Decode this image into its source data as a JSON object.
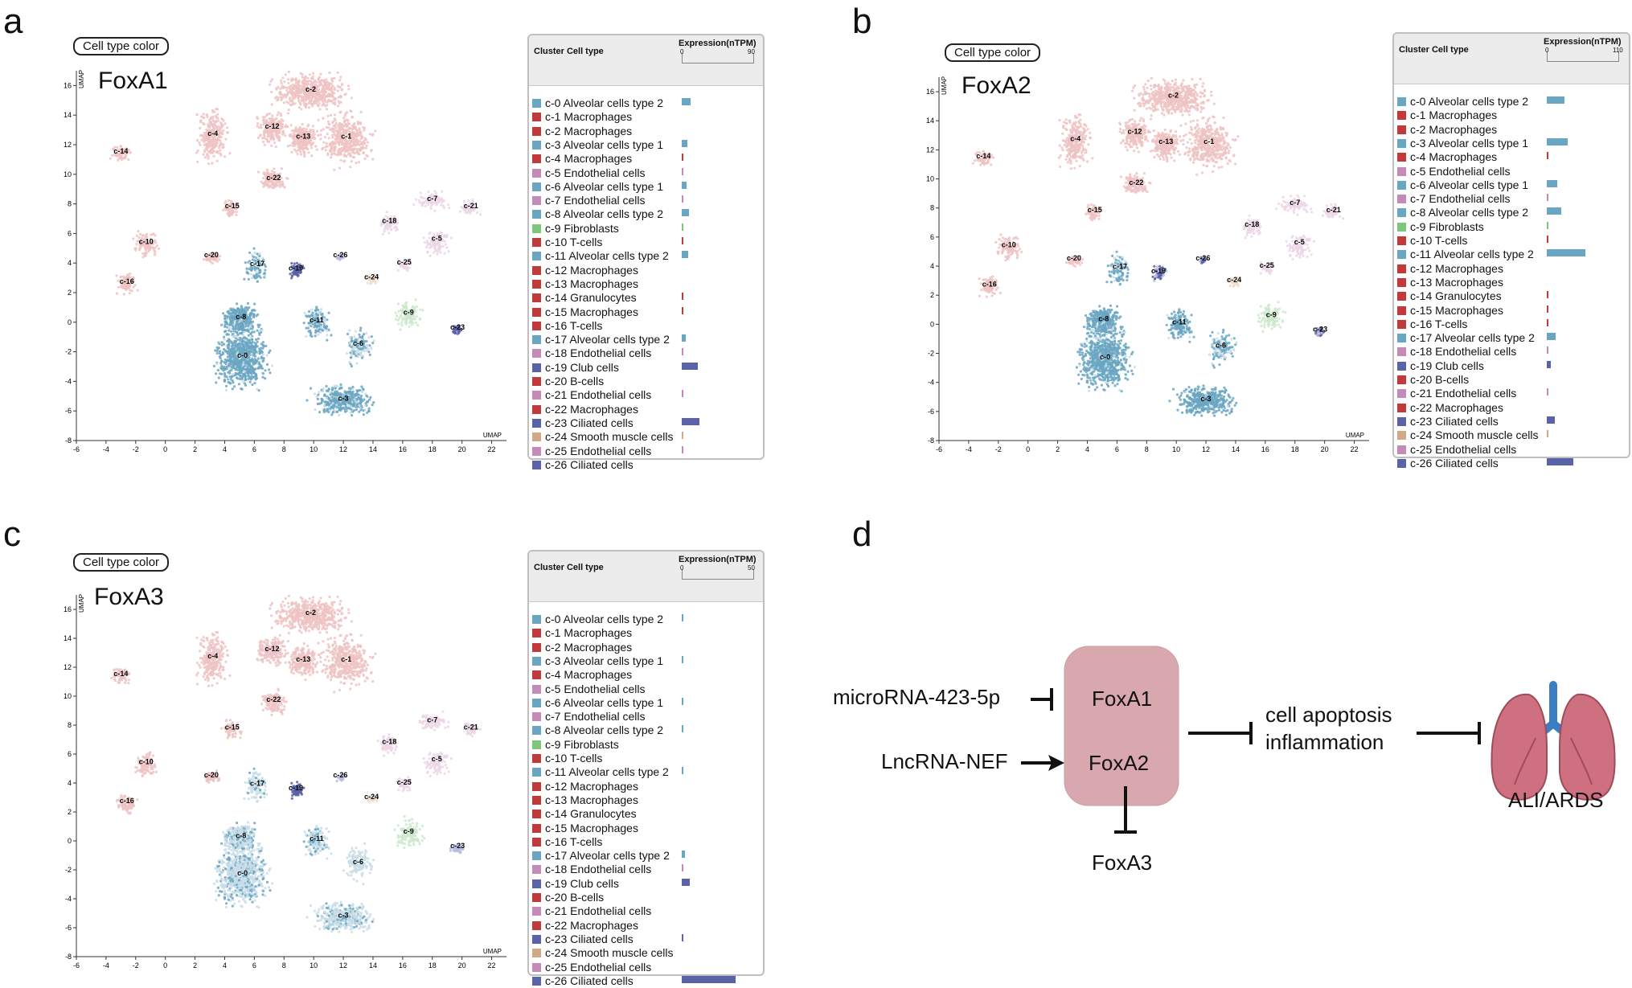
{
  "panel_labels": {
    "a": "a",
    "b": "b",
    "c": "c",
    "d": "d"
  },
  "cell_type_color_label": "Cell type color",
  "axis_label": "UMAP",
  "x_ticks": [
    "-6",
    "-4",
    "-2",
    "0",
    "2",
    "4",
    "6",
    "8",
    "10",
    "12",
    "14",
    "16",
    "18",
    "20",
    "22"
  ],
  "y_ticks": [
    "16",
    "14",
    "12",
    "10",
    "8",
    "6",
    "4",
    "2",
    "0",
    "-2",
    "-4",
    "-6",
    "-8"
  ],
  "clusters": [
    {
      "id": "c-0",
      "type": "Alveolar cells type 2",
      "x": 5.2,
      "y": -2.4
    },
    {
      "id": "c-1",
      "type": "Macrophages",
      "x": 12.2,
      "y": 12.4
    },
    {
      "id": "c-2",
      "type": "Macrophages",
      "x": 9.8,
      "y": 15.6
    },
    {
      "id": "c-3",
      "type": "Alveolar cells type 1",
      "x": 12,
      "y": -5.3
    },
    {
      "id": "c-4",
      "type": "Macrophages",
      "x": 3.2,
      "y": 12.6
    },
    {
      "id": "c-5",
      "type": "Endothelial cells",
      "x": 18.3,
      "y": 5.5
    },
    {
      "id": "c-6",
      "type": "Alveolar cells type 1",
      "x": 13,
      "y": -1.6
    },
    {
      "id": "c-7",
      "type": "Endothelial cells",
      "x": 18,
      "y": 8.2
    },
    {
      "id": "c-8",
      "type": "Alveolar cells type 2",
      "x": 5.1,
      "y": 0.2
    },
    {
      "id": "c-9",
      "type": "Fibroblasts",
      "x": 16.4,
      "y": 0.5
    },
    {
      "id": "c-10",
      "type": "T-cells",
      "x": -1.3,
      "y": 5.3
    },
    {
      "id": "c-11",
      "type": "Alveolar cells type 2",
      "x": 10.2,
      "y": 0
    },
    {
      "id": "c-12",
      "type": "Macrophages",
      "x": 7.2,
      "y": 13.1
    },
    {
      "id": "c-13",
      "type": "Macrophages",
      "x": 9.3,
      "y": 12.4
    },
    {
      "id": "c-14",
      "type": "Granulocytes",
      "x": -3,
      "y": 11.4
    },
    {
      "id": "c-15",
      "type": "Macrophages",
      "x": 4.5,
      "y": 7.7
    },
    {
      "id": "c-16",
      "type": "T-cells",
      "x": -2.6,
      "y": 2.6
    },
    {
      "id": "c-17",
      "type": "Alveolar cells type 2",
      "x": 6.2,
      "y": 3.8
    },
    {
      "id": "c-18",
      "type": "Endothelial cells",
      "x": 15.1,
      "y": 6.7
    },
    {
      "id": "c-19",
      "type": "Club cells",
      "x": 8.8,
      "y": 3.5
    },
    {
      "id": "c-20",
      "type": "B-cells",
      "x": 3.1,
      "y": 4.4
    },
    {
      "id": "c-21",
      "type": "Endothelial cells",
      "x": 20.6,
      "y": 7.7
    },
    {
      "id": "c-22",
      "type": "Macrophages",
      "x": 7.3,
      "y": 9.6
    },
    {
      "id": "c-23",
      "type": "Ciliated cells",
      "x": 19.7,
      "y": -0.5
    },
    {
      "id": "c-24",
      "type": "Smooth muscle cells",
      "x": 13.9,
      "y": 2.9
    },
    {
      "id": "c-25",
      "type": "Endothelial cells",
      "x": 16.1,
      "y": 3.9
    },
    {
      "id": "c-26",
      "type": "Ciliated cells",
      "x": 11.8,
      "y": 4.4
    }
  ],
  "colors": {
    "Alveolar cells type 2": "#6aa6c2",
    "Alveolar cells type 1": "#6aa6c2",
    "Macrophages": "#c0393b",
    "Endothelial cells": "#c58bb8",
    "Fibroblasts": "#7dc67c",
    "T-cells": "#c0393b",
    "Granulocytes": "#c0393b",
    "Club cells": "#5a62a8",
    "B-cells": "#c0393b",
    "Ciliated cells": "#5a62a8",
    "Smooth muscle cells": "#d1a988"
  },
  "table": {
    "header_cluster": "Cluster Cell type",
    "header_expression": "Expression(nTPM)"
  },
  "panels": [
    {
      "label": "a",
      "gene": "FoxA1",
      "axis_max": "90",
      "max": 90,
      "values": [
        11,
        0,
        0,
        7,
        0.6,
        0.5,
        6,
        0.3,
        9.5,
        0.3,
        0.3,
        8.5,
        0,
        0,
        0.6,
        0.6,
        0,
        5,
        0.3,
        20.5,
        0,
        0.2,
        0,
        23,
        0.3,
        1,
        0
      ]
    },
    {
      "label": "b",
      "gene": "FoxA2",
      "axis_max": "110",
      "max": 110,
      "values": [
        28,
        0,
        0,
        33,
        1,
        0,
        16,
        0.5,
        22,
        0.4,
        0.4,
        60,
        0,
        0,
        0.8,
        0.4,
        0.4,
        14,
        0.4,
        6,
        0,
        0.4,
        0,
        13,
        0.2,
        0,
        41
      ]
    },
    {
      "label": "c",
      "gene": "FoxA3",
      "axis_max": "50",
      "max": 50,
      "values": [
        0.8,
        0,
        0,
        0.3,
        0,
        0,
        0.3,
        0,
        0.3,
        0,
        0,
        1.2,
        0,
        0,
        0,
        0,
        0,
        2.5,
        0.2,
        5.5,
        0,
        0,
        0,
        0.8,
        0,
        0,
        38
      ]
    }
  ],
  "diagram": {
    "mirna": "microRNA-423-5p",
    "lncrna": "LncRNA-NEF",
    "foxa1": "FoxA1",
    "foxa2": "FoxA2",
    "foxa3": "FoxA3",
    "effect_line1": "cell apoptosis",
    "effect_line2": "inflammation",
    "outcome": "ALI/ARDS",
    "node_color": "#d9a7ae"
  }
}
